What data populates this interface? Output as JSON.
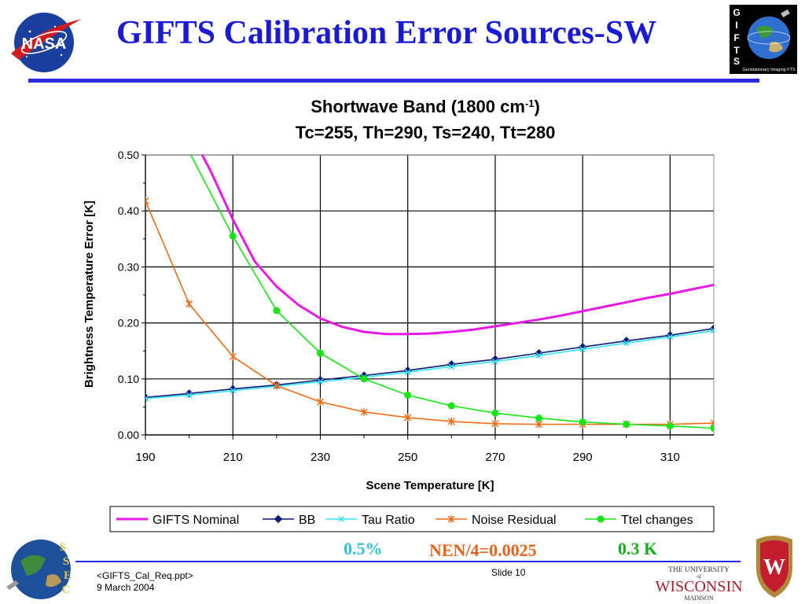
{
  "slide": {
    "title": "GIFTS Calibration Error Sources-SW",
    "footer_file": "<GIFTS_Cal_Req.ppt>",
    "footer_date": "9 March 2004",
    "slide_number": "Slide 10"
  },
  "logos": {
    "nasa_text": "NASA",
    "gifts_letters": [
      "G",
      "I",
      "F",
      "T",
      "S"
    ],
    "gifts_caption": "Geostationary Imaging FTS",
    "ssec_letters": [
      "S",
      "S",
      "E",
      "C"
    ],
    "uw_line1": "THE UNIVERSITY",
    "uw_line2": "of",
    "uw_line3": "WISCONSIN",
    "uw_line4": "MADISON",
    "crest_letter": "W"
  },
  "annotations": {
    "percent": "0.5%",
    "nen": "NEN/4=0.0025",
    "kelvin": "0.3 K"
  },
  "colors": {
    "title": "#1a1ad6",
    "gifts_nominal": "#e619e6",
    "bb": "#0a1a78",
    "tau_ratio": "#33e6f2",
    "noise_residual": "#ef6c14",
    "ttel_changes": "#14e614"
  },
  "chart_data": {
    "type": "line",
    "title_main": "Shortwave Band (1800 cm",
    "title_sup": "-1",
    "title_close": ")",
    "title_line2": "Tc=255, Th=290, Ts=240, Tt=280",
    "xlabel": "Scene Temperature  [K]",
    "ylabel": "Brightness Temperature Error [K]",
    "xlim": [
      190,
      320
    ],
    "ylim": [
      0,
      0.5
    ],
    "xticks": [
      "190",
      "210",
      "230",
      "250",
      "270",
      "290",
      "310"
    ],
    "yticks": [
      "0.00",
      "0.10",
      "0.20",
      "0.30",
      "0.40",
      "0.50"
    ],
    "grid": true,
    "legend_position": "bottom",
    "series": [
      {
        "name": "GIFTS Nominal",
        "marker": "none",
        "x": [
          203.0,
          205,
          210,
          215,
          220,
          225,
          230,
          235,
          240,
          245,
          250,
          255,
          260,
          265,
          270,
          275,
          280,
          285,
          290,
          295,
          300,
          305,
          310,
          315,
          320
        ],
        "y": [
          0.5,
          0.47,
          0.385,
          0.31,
          0.265,
          0.232,
          0.208,
          0.193,
          0.184,
          0.18,
          0.18,
          0.181,
          0.184,
          0.188,
          0.194,
          0.2,
          0.206,
          0.213,
          0.221,
          0.229,
          0.237,
          0.245,
          0.252,
          0.26,
          0.268
        ]
      },
      {
        "name": "BB",
        "marker": "diamond",
        "x": [
          190,
          200,
          210,
          220,
          230,
          240,
          250,
          260,
          270,
          280,
          290,
          300,
          310,
          320
        ],
        "y": [
          0.067,
          0.074,
          0.082,
          0.089,
          0.098,
          0.106,
          0.115,
          0.126,
          0.135,
          0.146,
          0.157,
          0.168,
          0.178,
          0.19
        ]
      },
      {
        "name": "Tau Ratio",
        "marker": "x",
        "x": [
          190,
          200,
          210,
          220,
          230,
          240,
          250,
          260,
          270,
          280,
          290,
          300,
          310,
          320
        ],
        "y": [
          0.065,
          0.071,
          0.079,
          0.087,
          0.095,
          0.103,
          0.112,
          0.122,
          0.131,
          0.142,
          0.153,
          0.164,
          0.175,
          0.186
        ]
      },
      {
        "name": "Noise Residual",
        "marker": "star",
        "x": [
          190,
          200,
          210,
          220,
          230,
          240,
          250,
          260,
          270,
          280,
          290,
          300,
          310,
          320
        ],
        "y": [
          0.418,
          0.234,
          0.14,
          0.088,
          0.059,
          0.041,
          0.031,
          0.024,
          0.02,
          0.019,
          0.019,
          0.019,
          0.019,
          0.021
        ]
      },
      {
        "name": "Ttel changes",
        "marker": "circle",
        "x": [
          200.4,
          210,
          220,
          230,
          240,
          250,
          260,
          270,
          280,
          290,
          300,
          310,
          320
        ],
        "y": [
          0.5,
          0.355,
          0.222,
          0.146,
          0.1,
          0.071,
          0.052,
          0.039,
          0.03,
          0.023,
          0.019,
          0.016,
          0.012
        ]
      }
    ]
  }
}
